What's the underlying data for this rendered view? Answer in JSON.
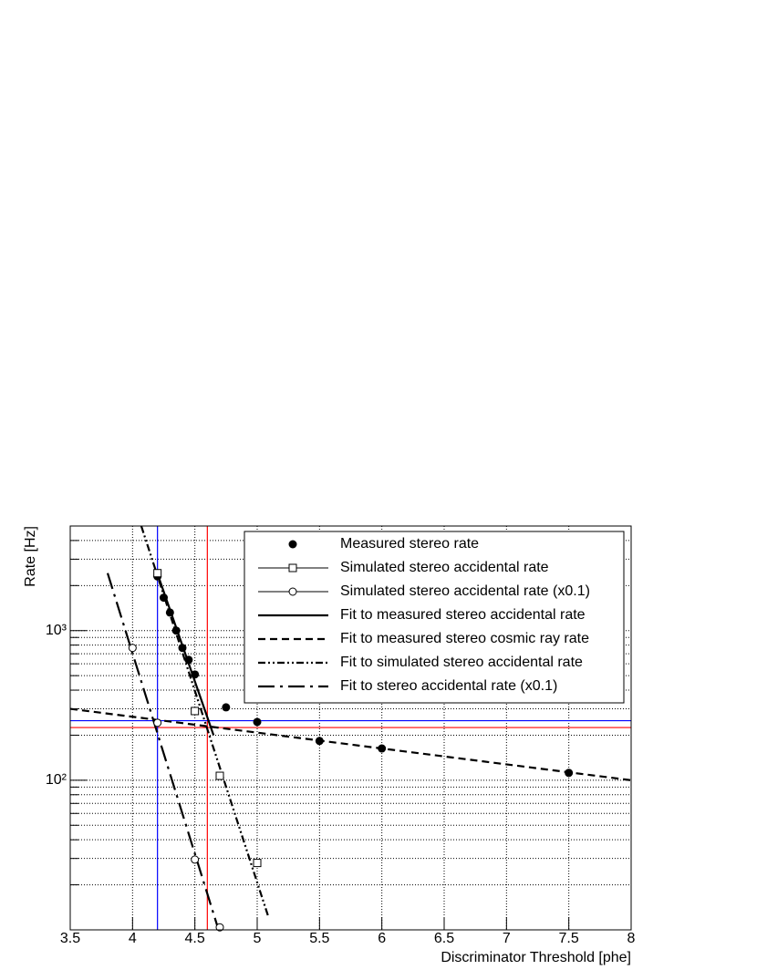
{
  "chart_data": {
    "type": "scatter",
    "xlabel": "Discriminator Threshold [phe]",
    "ylabel": "Rate [Hz]",
    "xlim": [
      3.5,
      8
    ],
    "xticks": [
      3.5,
      4,
      4.5,
      5,
      5.5,
      6,
      6.5,
      7,
      7.5,
      8
    ],
    "ylim": [
      10,
      5000
    ],
    "log_y": true,
    "yticks": [
      {
        "value": 100,
        "label": "10²"
      },
      {
        "value": 1000,
        "label": "10³"
      }
    ],
    "yminor": [
      20,
      30,
      40,
      50,
      60,
      70,
      80,
      90,
      200,
      300,
      400,
      500,
      600,
      700,
      800,
      900,
      2000,
      3000,
      4000,
      5000
    ],
    "grid": true,
    "legend": "upper right",
    "series": [
      {
        "name": "Measured stereo rate",
        "color": "#000000",
        "marker": "filled-circle",
        "x": [
          4.2,
          4.25,
          4.3,
          4.35,
          4.4,
          4.45,
          4.5,
          4.75,
          5,
          5.5,
          6,
          7.5
        ],
        "values": [
          2300,
          1660,
          1320,
          1000,
          766,
          638,
          509,
          307,
          245,
          183,
          163,
          112
        ]
      },
      {
        "name": "Simulated stereo accidental rate",
        "color": "#000000",
        "marker": "open-square",
        "x": [
          4.2,
          4.5,
          4.7,
          5
        ],
        "values": [
          2420,
          290,
          107,
          28
        ]
      },
      {
        "name": "Simulated stereo accidental rate (x0.1)",
        "color": "#000000",
        "marker": "open-circle",
        "x": [
          4,
          4.2,
          4.5,
          4.7
        ],
        "values": [
          766,
          242,
          29.5,
          10.4
        ]
      },
      {
        "name": "Fit to measured stereo accidental rate",
        "color": "#000000",
        "dash": "solid",
        "x": [
          4.2,
          4.65
        ],
        "values": [
          2400,
          200
        ]
      },
      {
        "name": "Fit to measured stereo cosmic ray rate",
        "color": "#000000",
        "dash": "dashed",
        "x": [
          3.5,
          8
        ],
        "values": [
          300,
          100
        ]
      },
      {
        "name": "Fit to simulated stereo accidental rate",
        "color": "#000000",
        "dash": "dash-dot-dot",
        "x": [
          4.07,
          5.09
        ],
        "values": [
          5000,
          12.2
        ]
      },
      {
        "name": "Fit to stereo accidental rate (x0.1)",
        "color": "#000000",
        "dash": "long-dash-dot",
        "x": [
          3.8,
          4.69
        ],
        "values": [
          2420,
          10
        ]
      }
    ],
    "reference_lines": [
      {
        "axis": "x",
        "value": 4.6,
        "color": "#ff0000"
      },
      {
        "axis": "y",
        "value": 225,
        "color": "#ff0000"
      },
      {
        "axis": "x",
        "value": 4.2,
        "color": "#0000ff"
      },
      {
        "axis": "y",
        "value": 250,
        "color": "#0000ff"
      }
    ]
  }
}
